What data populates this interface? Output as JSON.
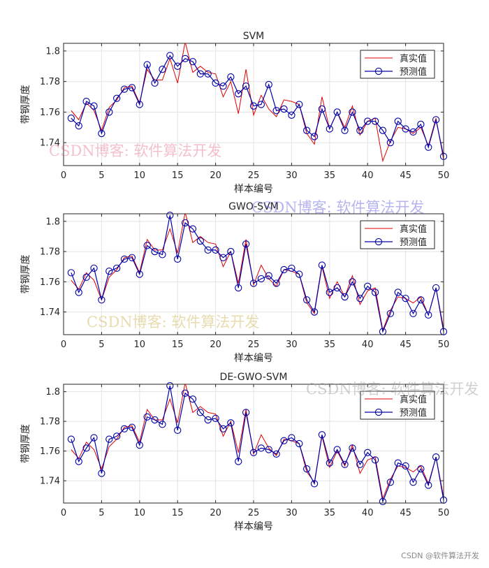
{
  "colors": {
    "actual": "#e00000",
    "predicted": "#0000a8",
    "grid": "#e3e3e3",
    "axis": "#262626"
  },
  "watermark_text": "CSDN博客: 软件算法开发",
  "footer": "CSDN @软件算法开发",
  "chart_data": [
    {
      "type": "line",
      "title": "SVM",
      "xlabel": "样本编号",
      "ylabel": "带钢厚度",
      "xlim": [
        0,
        50
      ],
      "ylim": [
        1.725,
        1.805
      ],
      "xticks": [
        0,
        5,
        10,
        15,
        20,
        25,
        30,
        35,
        40,
        45,
        50
      ],
      "yticks": [
        1.74,
        1.76,
        1.78,
        1.8
      ],
      "grid": true,
      "legend_position": "top-right",
      "x": [
        1,
        2,
        3,
        4,
        5,
        6,
        7,
        8,
        9,
        10,
        11,
        12,
        13,
        14,
        15,
        16,
        17,
        18,
        19,
        20,
        21,
        22,
        23,
        24,
        25,
        26,
        27,
        28,
        29,
        30,
        31,
        32,
        33,
        34,
        35,
        36,
        37,
        38,
        39,
        40,
        41,
        42,
        43,
        44,
        45,
        46,
        47,
        48,
        49,
        50
      ],
      "series": [
        {
          "name": "真实值",
          "values": [
            1.761,
            1.755,
            1.766,
            1.761,
            1.748,
            1.763,
            1.768,
            1.776,
            1.777,
            1.766,
            1.788,
            1.781,
            1.781,
            1.795,
            1.779,
            1.806,
            1.786,
            1.79,
            1.786,
            1.785,
            1.77,
            1.78,
            1.759,
            1.788,
            1.758,
            1.771,
            1.762,
            1.757,
            1.768,
            1.767,
            1.765,
            1.746,
            1.739,
            1.77,
            1.749,
            1.76,
            1.75,
            1.764,
            1.745,
            1.754,
            1.756,
            1.728,
            1.741,
            1.75,
            1.749,
            1.746,
            1.75,
            1.738,
            1.756,
            1.729
          ]
        },
        {
          "name": "预测值",
          "values": [
            1.756,
            1.751,
            1.767,
            1.764,
            1.746,
            1.76,
            1.769,
            1.775,
            1.776,
            1.765,
            1.791,
            1.779,
            1.788,
            1.797,
            1.79,
            1.795,
            1.793,
            1.785,
            1.785,
            1.779,
            1.777,
            1.783,
            1.772,
            1.777,
            1.764,
            1.765,
            1.778,
            1.761,
            1.762,
            1.758,
            1.765,
            1.748,
            1.744,
            1.762,
            1.749,
            1.76,
            1.748,
            1.76,
            1.748,
            1.754,
            1.754,
            1.748,
            1.74,
            1.754,
            1.749,
            1.747,
            1.752,
            1.737,
            1.755,
            1.731
          ]
        }
      ]
    },
    {
      "type": "line",
      "title": "GWO-SVM",
      "xlabel": "样本编号",
      "ylabel": "带钢厚度",
      "xlim": [
        0,
        50
      ],
      "ylim": [
        1.725,
        1.805
      ],
      "xticks": [
        0,
        5,
        10,
        15,
        20,
        25,
        30,
        35,
        40,
        45,
        50
      ],
      "yticks": [
        1.74,
        1.76,
        1.78,
        1.8
      ],
      "grid": true,
      "legend_position": "top-right",
      "x": [
        1,
        2,
        3,
        4,
        5,
        6,
        7,
        8,
        9,
        10,
        11,
        12,
        13,
        14,
        15,
        16,
        17,
        18,
        19,
        20,
        21,
        22,
        23,
        24,
        25,
        26,
        27,
        28,
        29,
        30,
        31,
        32,
        33,
        34,
        35,
        36,
        37,
        38,
        39,
        40,
        41,
        42,
        43,
        44,
        45,
        46,
        47,
        48,
        49,
        50
      ],
      "series": [
        {
          "name": "真实值",
          "values": [
            1.761,
            1.755,
            1.766,
            1.761,
            1.748,
            1.763,
            1.768,
            1.776,
            1.777,
            1.766,
            1.788,
            1.781,
            1.781,
            1.795,
            1.779,
            1.806,
            1.786,
            1.79,
            1.786,
            1.785,
            1.77,
            1.78,
            1.759,
            1.788,
            1.758,
            1.771,
            1.762,
            1.757,
            1.768,
            1.767,
            1.765,
            1.746,
            1.739,
            1.77,
            1.749,
            1.76,
            1.75,
            1.764,
            1.745,
            1.754,
            1.756,
            1.728,
            1.741,
            1.75,
            1.749,
            1.746,
            1.75,
            1.738,
            1.756,
            1.729
          ]
        },
        {
          "name": "预测值",
          "values": [
            1.766,
            1.753,
            1.763,
            1.769,
            1.748,
            1.767,
            1.769,
            1.775,
            1.776,
            1.765,
            1.784,
            1.78,
            1.778,
            1.804,
            1.775,
            1.799,
            1.795,
            1.787,
            1.781,
            1.781,
            1.776,
            1.78,
            1.756,
            1.785,
            1.759,
            1.762,
            1.764,
            1.759,
            1.768,
            1.769,
            1.765,
            1.748,
            1.74,
            1.771,
            1.753,
            1.756,
            1.75,
            1.76,
            1.749,
            1.757,
            1.753,
            1.727,
            1.739,
            1.753,
            1.749,
            1.739,
            1.748,
            1.738,
            1.756,
            1.727
          ]
        }
      ]
    },
    {
      "type": "line",
      "title": "DE-GWO-SVM",
      "xlabel": "样本编号",
      "ylabel": "带钢厚度",
      "xlim": [
        0,
        50
      ],
      "ylim": [
        1.725,
        1.805
      ],
      "xticks": [
        0,
        5,
        10,
        15,
        20,
        25,
        30,
        35,
        40,
        45,
        50
      ],
      "yticks": [
        1.74,
        1.76,
        1.78,
        1.8
      ],
      "grid": true,
      "legend_position": "top-right",
      "x": [
        1,
        2,
        3,
        4,
        5,
        6,
        7,
        8,
        9,
        10,
        11,
        12,
        13,
        14,
        15,
        16,
        17,
        18,
        19,
        20,
        21,
        22,
        23,
        24,
        25,
        26,
        27,
        28,
        29,
        30,
        31,
        32,
        33,
        34,
        35,
        36,
        37,
        38,
        39,
        40,
        41,
        42,
        43,
        44,
        45,
        46,
        47,
        48,
        49,
        50
      ],
      "series": [
        {
          "name": "真实值",
          "values": [
            1.761,
            1.755,
            1.766,
            1.761,
            1.748,
            1.763,
            1.768,
            1.776,
            1.777,
            1.766,
            1.788,
            1.781,
            1.781,
            1.795,
            1.779,
            1.806,
            1.786,
            1.79,
            1.786,
            1.785,
            1.77,
            1.78,
            1.759,
            1.788,
            1.758,
            1.771,
            1.762,
            1.757,
            1.768,
            1.767,
            1.765,
            1.746,
            1.739,
            1.77,
            1.749,
            1.76,
            1.75,
            1.764,
            1.745,
            1.754,
            1.756,
            1.728,
            1.741,
            1.75,
            1.749,
            1.746,
            1.75,
            1.738,
            1.756,
            1.729
          ]
        },
        {
          "name": "预测值",
          "values": [
            1.768,
            1.753,
            1.762,
            1.769,
            1.745,
            1.768,
            1.77,
            1.775,
            1.776,
            1.764,
            1.783,
            1.781,
            1.778,
            1.804,
            1.774,
            1.799,
            1.795,
            1.786,
            1.781,
            1.782,
            1.775,
            1.779,
            1.753,
            1.786,
            1.759,
            1.762,
            1.761,
            1.758,
            1.767,
            1.769,
            1.765,
            1.748,
            1.738,
            1.771,
            1.752,
            1.761,
            1.751,
            1.762,
            1.751,
            1.759,
            1.754,
            1.726,
            1.739,
            1.752,
            1.75,
            1.739,
            1.748,
            1.737,
            1.756,
            1.727
          ]
        }
      ]
    }
  ]
}
